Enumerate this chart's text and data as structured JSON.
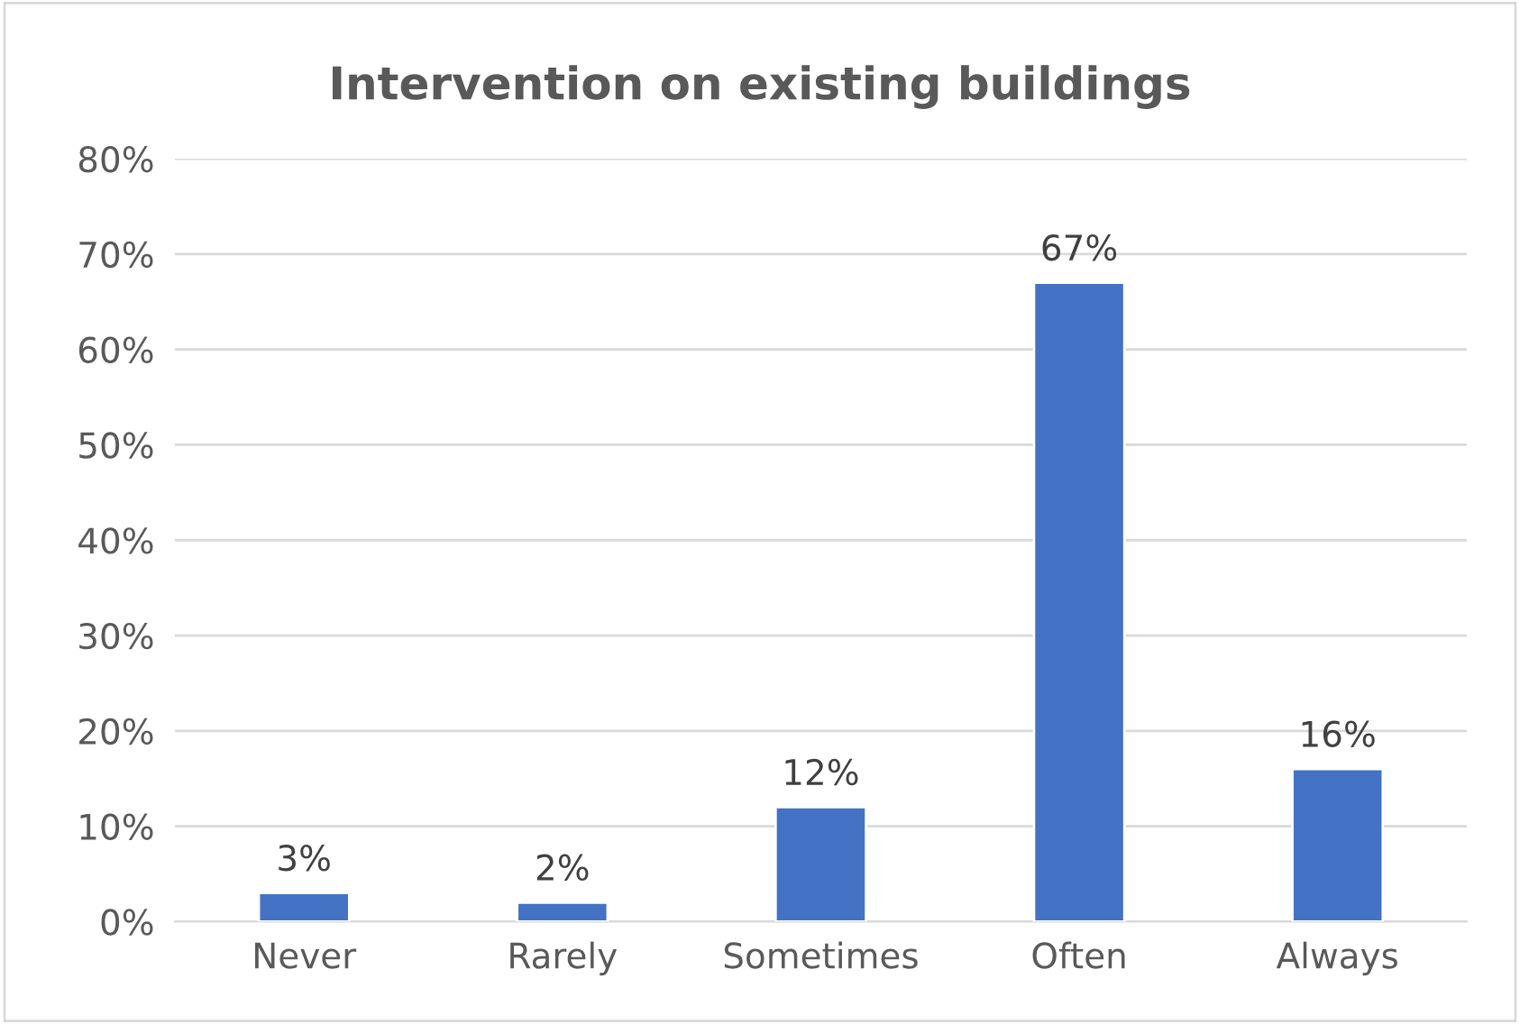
{
  "chart_data": {
    "type": "bar",
    "title": "Intervention on existing buildings",
    "categories": [
      "Never",
      "Rarely",
      "Sometimes",
      "Often",
      "Always"
    ],
    "values": [
      3,
      2,
      12,
      67,
      16
    ],
    "color": "#4472c4",
    "value_labels": [
      "3%",
      "2%",
      "12%",
      "67%",
      "16%"
    ],
    "ylim": [
      0,
      80
    ],
    "yticks": [
      {
        "value": 0,
        "label": "0%"
      },
      {
        "value": 10,
        "label": "10%"
      },
      {
        "value": 20,
        "label": "20%"
      },
      {
        "value": 30,
        "label": "30%"
      },
      {
        "value": 40,
        "label": "40%"
      },
      {
        "value": 50,
        "label": "50%"
      },
      {
        "value": 60,
        "label": "60%"
      },
      {
        "value": 70,
        "label": "70%"
      },
      {
        "value": 80,
        "label": "80%"
      }
    ],
    "grid": "y",
    "legend": false
  }
}
